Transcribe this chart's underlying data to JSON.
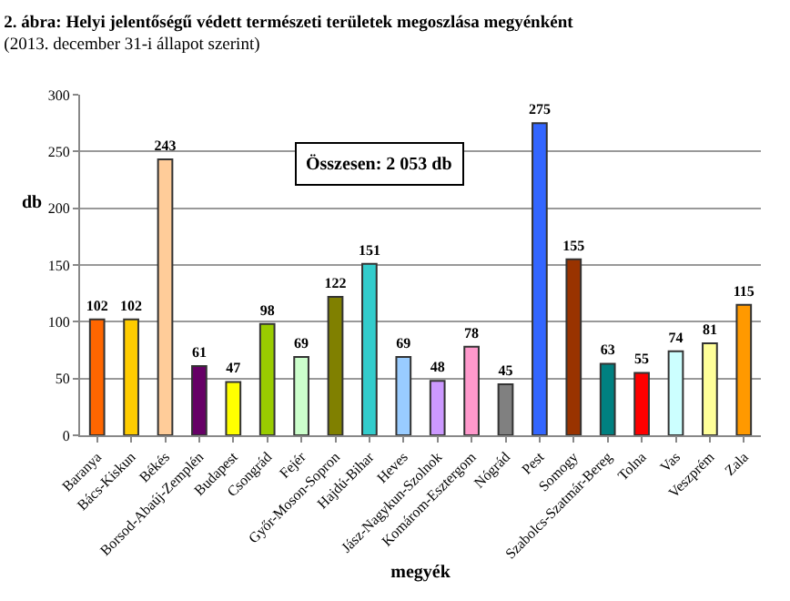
{
  "chart_data": {
    "type": "bar",
    "title": "2. ábra: Helyi jelentőségű védett természeti területek megoszlása megyénként",
    "subtitle": "(2013. december 31-i állapot szerint)",
    "xlabel": "megyék",
    "ylabel": "db",
    "categories": [
      "Baranya",
      "Bács-Kiskun",
      "Békés",
      "Borsod-Abaúj-Zemplén",
      "Budapest",
      "Csongrád",
      "Fejér",
      "Győr-Moson-Sopron",
      "Hajdú-Bihar",
      "Heves",
      "Jász-Nagykun-Szolnok",
      "Komárom-Esztergom",
      "Nógrád",
      "Pest",
      "Somogy",
      "Szabolcs-Szatmár-Bereg",
      "Tolna",
      "Vas",
      "Veszprém",
      "Zala"
    ],
    "values": [
      102,
      102,
      243,
      61,
      47,
      98,
      69,
      122,
      151,
      69,
      48,
      78,
      45,
      275,
      155,
      63,
      55,
      74,
      81,
      115
    ],
    "colors": [
      "#ff6600",
      "#ffcc00",
      "#ffcc99",
      "#660066",
      "#ffff00",
      "#99cc00",
      "#ccffcc",
      "#808000",
      "#33cccc",
      "#99ccff",
      "#cc99ff",
      "#ff99cc",
      "#808080",
      "#3366ff",
      "#993300",
      "#008080",
      "#ff0000",
      "#ccffff",
      "#ffff99",
      "#ff9900"
    ],
    "ylim": [
      0,
      300
    ],
    "yticks": [
      0,
      50,
      100,
      150,
      200,
      250,
      300
    ],
    "grid": "y",
    "data_labels": true,
    "annotations": [
      "Összesen: 2 053 db"
    ]
  }
}
